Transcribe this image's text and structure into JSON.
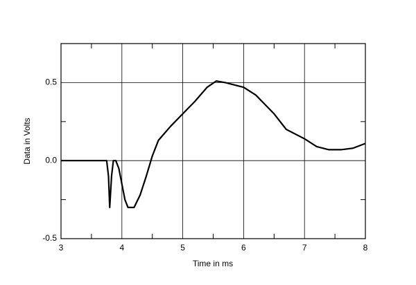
{
  "chart_data": {
    "type": "line",
    "x_label": "Time in ms",
    "y_label": "Data in Volts",
    "x": [
      3.0,
      3.75,
      3.78,
      3.8,
      3.83,
      3.86,
      3.9,
      3.95,
      4.0,
      4.05,
      4.1,
      4.2,
      4.3,
      4.4,
      4.5,
      4.6,
      4.8,
      5.0,
      5.2,
      5.4,
      5.55,
      5.7,
      6.0,
      6.2,
      6.5,
      6.7,
      7.0,
      7.2,
      7.4,
      7.6,
      7.8,
      8.0
    ],
    "series": [
      {
        "color": "#000000",
        "values": [
          0,
          0,
          -0.1,
          -0.3,
          -0.1,
          0.0,
          0.0,
          -0.05,
          -0.15,
          -0.25,
          -0.3,
          -0.3,
          -0.22,
          -0.1,
          0.03,
          0.13,
          0.22,
          0.3,
          0.38,
          0.47,
          0.51,
          0.5,
          0.47,
          0.42,
          0.3,
          0.2,
          0.14,
          0.09,
          0.07,
          0.07,
          0.08,
          0.11
        ]
      }
    ],
    "xlim": [
      3,
      8
    ],
    "ylim": [
      -0.5,
      0.75
    ],
    "xticks": [
      3,
      4,
      5,
      6,
      7,
      8
    ],
    "yticks": [
      -0.5,
      {
        "value": 0,
        "label": "0.0"
      },
      0.5
    ],
    "x_minor_ticks": [
      3.5,
      4.5,
      5.5,
      6.5,
      7.5
    ],
    "y_minor_ticks": [
      -0.25,
      0.25
    ],
    "grid": true
  }
}
